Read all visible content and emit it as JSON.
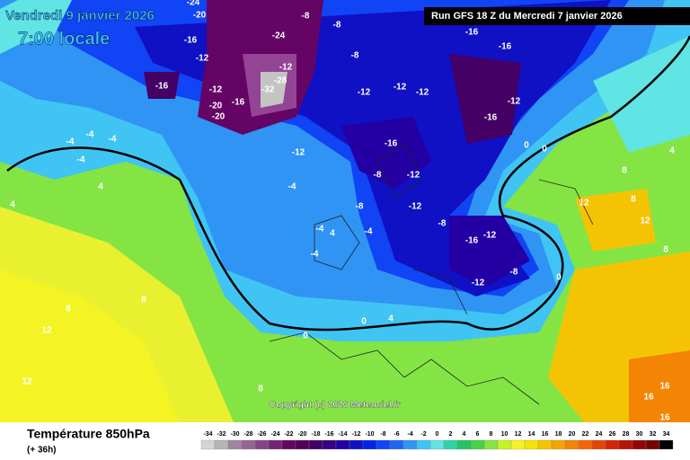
{
  "header": {
    "date": "Vendredi 9 janvier 2026",
    "time": "7:00 locale",
    "run": "Run GFS 18 Z du Mercredi 7 janvier 2026"
  },
  "map": {
    "copyright": "Copyright (c) 2026 Meteociel.fr",
    "labels": [
      "-24",
      "-20",
      "-16",
      "-8",
      "-8",
      "-16",
      "-12",
      "-16",
      "-12",
      "-20",
      "-24",
      "-12",
      "-28",
      "-32",
      "-16",
      "-20",
      "-16",
      "-8",
      "-12",
      "-12",
      "-12",
      "-16",
      "-12",
      "-4",
      "-4",
      "-4",
      "-4",
      "-12",
      "-16",
      "-8",
      "-12",
      "-4",
      "-12",
      "-8",
      "-16",
      "-12",
      "-4",
      "-4",
      "-8",
      "-12",
      "-4",
      "0",
      "0",
      "0",
      "0",
      "4",
      "8",
      "8",
      "12",
      "12",
      "8",
      "4",
      "4",
      "4",
      "8",
      "12",
      "8",
      "16",
      "16",
      "16",
      "12",
      "0",
      "-8",
      "8",
      "4"
    ]
  },
  "footer": {
    "title": "Température 850hPa",
    "lead": "(+ 36h)",
    "scale": [
      {
        "label": "-34",
        "color": "#d4d4d4"
      },
      {
        "label": "-32",
        "color": "#b4b4b4"
      },
      {
        "label": "-30",
        "color": "#a084a0"
      },
      {
        "label": "-28",
        "color": "#946494"
      },
      {
        "label": "-26",
        "color": "#844484"
      },
      {
        "label": "-24",
        "color": "#742474"
      },
      {
        "label": "-22",
        "color": "#640464"
      },
      {
        "label": "-20",
        "color": "#540054"
      },
      {
        "label": "-18",
        "color": "#440064"
      },
      {
        "label": "-16",
        "color": "#340084"
      },
      {
        "label": "-14",
        "color": "#2400a4"
      },
      {
        "label": "-12",
        "color": "#1010c4"
      },
      {
        "label": "-10",
        "color": "#0024e4"
      },
      {
        "label": "-8",
        "color": "#1044f4"
      },
      {
        "label": "-6",
        "color": "#2064f4"
      },
      {
        "label": "-4",
        "color": "#3094f4"
      },
      {
        "label": "-2",
        "color": "#40c4f4"
      },
      {
        "label": "0",
        "color": "#60e4e4"
      },
      {
        "label": "2",
        "color": "#30d4a4"
      },
      {
        "label": "4",
        "color": "#24c464"
      },
      {
        "label": "6",
        "color": "#44d444"
      },
      {
        "label": "8",
        "color": "#84e444"
      },
      {
        "label": "10",
        "color": "#c4f424"
      },
      {
        "label": "12",
        "color": "#f4f424"
      },
      {
        "label": "14",
        "color": "#f4e404"
      },
      {
        "label": "16",
        "color": "#f4c404"
      },
      {
        "label": "18",
        "color": "#f4a404"
      },
      {
        "label": "20",
        "color": "#f48404"
      },
      {
        "label": "22",
        "color": "#f46404"
      },
      {
        "label": "24",
        "color": "#e44404"
      },
      {
        "label": "26",
        "color": "#d42404"
      },
      {
        "label": "28",
        "color": "#b41404"
      },
      {
        "label": "30",
        "color": "#940404"
      },
      {
        "label": "32",
        "color": "#740404"
      },
      {
        "label": "34",
        "color": "#040404"
      }
    ]
  }
}
